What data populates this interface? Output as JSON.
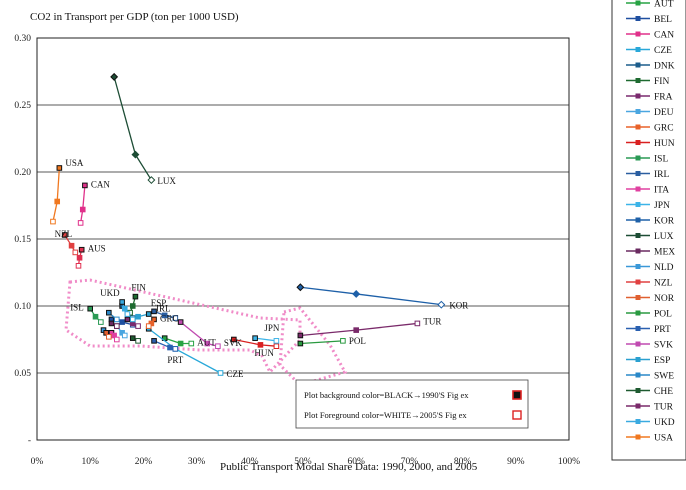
{
  "chart_data": {
    "type": "scatter",
    "title": "CO2 in Transport per GDP (ton per 1000 USD)",
    "xlabel": "Public Transport Modal Share    Data: 1990, 2000, and 2005",
    "ylabel": "",
    "xlim": [
      0,
      100
    ],
    "ylim": [
      0,
      0.3
    ],
    "x_ticks": [
      "0%",
      "10%",
      "20%",
      "30%",
      "40%",
      "50%",
      "60%",
      "70%",
      "80%",
      "90%",
      "100%"
    ],
    "y_ticks": [
      "0.30",
      "0.25",
      "0.20",
      "0.15",
      "0.10",
      "0.05",
      "-"
    ],
    "grid": "horizontal",
    "legend_position": "right",
    "notes": [
      {
        "text": "Plot background color=BLACK→1990'S Fig  ex",
        "marker": "filled"
      },
      {
        "text": "Plot Foreground color=WHITE→2005'S Fig  ex",
        "marker": "open"
      }
    ],
    "series": [
      {
        "name": "AUT",
        "label": "AUT",
        "color": "#27a343",
        "points": [
          [
            24,
            0.076
          ],
          [
            27,
            0.072
          ],
          [
            29,
            0.072
          ]
        ]
      },
      {
        "name": "BEL",
        "label": "",
        "color": "#1f4fa0",
        "points": [
          [
            14,
            0.09
          ],
          [
            16,
            0.088
          ],
          [
            18,
            0.086
          ]
        ]
      },
      {
        "name": "CAN",
        "label": "CAN",
        "color": "#e0308a",
        "points": [
          [
            9,
            0.19
          ],
          [
            8.6,
            0.172
          ],
          [
            8.2,
            0.162
          ]
        ]
      },
      {
        "name": "CZE",
        "label": "CZE",
        "color": "#29a8d9",
        "points": [
          [
            21,
            0.083
          ],
          [
            26,
            0.068
          ],
          [
            34.5,
            0.05
          ]
        ]
      },
      {
        "name": "DNK",
        "label": "",
        "color": "#1c5d8c",
        "points": [
          [
            16,
            0.1
          ],
          [
            17,
            0.095
          ],
          [
            18,
            0.091
          ]
        ]
      },
      {
        "name": "FIN",
        "label": "FIN",
        "color": "#1e6a30",
        "points": [
          [
            18.5,
            0.107
          ],
          [
            18,
            0.1
          ],
          [
            17.5,
            0.095
          ]
        ]
      },
      {
        "name": "FRA",
        "label": "",
        "color": "#7a2a6e",
        "points": [
          [
            17,
            0.09
          ],
          [
            18,
            0.087
          ],
          [
            19,
            0.085
          ]
        ]
      },
      {
        "name": "DEU",
        "label": "",
        "color": "#4aa6e0",
        "points": [
          [
            15,
            0.085
          ],
          [
            16,
            0.08
          ],
          [
            16.5,
            0.078
          ]
        ]
      },
      {
        "name": "GRC",
        "label": "GRC",
        "color": "#e8622a",
        "points": [
          [
            22,
            0.09
          ],
          [
            21.5,
            0.087
          ],
          [
            21,
            0.085
          ]
        ]
      },
      {
        "name": "HUN",
        "label": "HUN",
        "color": "#d92020",
        "points": [
          [
            37,
            0.075
          ],
          [
            42,
            0.071
          ],
          [
            45,
            0.07
          ]
        ]
      },
      {
        "name": "ISL",
        "label": "ISL",
        "color": "#2a9a55",
        "points": [
          [
            10,
            0.098
          ],
          [
            11,
            0.092
          ],
          [
            12,
            0.088
          ]
        ]
      },
      {
        "name": "IRL",
        "label": "IRL",
        "color": "#2a5ea0",
        "points": [
          [
            22,
            0.096
          ],
          [
            24,
            0.093
          ],
          [
            26,
            0.091
          ]
        ]
      },
      {
        "name": "ITA",
        "label": "",
        "color": "#e040a0",
        "points": [
          [
            14,
            0.08
          ],
          [
            14.5,
            0.078
          ],
          [
            15,
            0.075
          ]
        ]
      },
      {
        "name": "JPN",
        "label": "JPN",
        "color": "#3cb4e8",
        "points": [
          [
            41,
            0.076
          ],
          [
            45,
            0.074
          ]
        ]
      },
      {
        "name": "KOR",
        "label": "KOR",
        "color": "#1e60a8",
        "points": [
          [
            49.5,
            0.114
          ],
          [
            60,
            0.109
          ],
          [
            76,
            0.101
          ]
        ]
      },
      {
        "name": "LUX",
        "label": "LUX",
        "color": "#1d4d35",
        "points": [
          [
            14.5,
            0.271
          ],
          [
            18.5,
            0.213
          ],
          [
            21.5,
            0.194
          ]
        ]
      },
      {
        "name": "MEX",
        "label": "",
        "color": "#6a2a60",
        "points": [
          [
            14,
            0.087
          ],
          [
            15,
            0.085
          ]
        ]
      },
      {
        "name": "NLD",
        "label": "",
        "color": "#3a98d8",
        "points": [
          [
            12.5,
            0.082
          ],
          [
            13,
            0.08
          ]
        ]
      },
      {
        "name": "NZL",
        "label": "NZL",
        "color": "#e04040",
        "points": [
          [
            5.2,
            0.153
          ],
          [
            6.5,
            0.145
          ],
          [
            7.2,
            0.14
          ]
        ]
      },
      {
        "name": "NOR",
        "label": "",
        "color": "#e06030",
        "points": [
          [
            13,
            0.08
          ],
          [
            13.5,
            0.077
          ]
        ]
      },
      {
        "name": "POL",
        "label": "POL",
        "color": "#2a9a40",
        "points": [
          [
            49.5,
            0.072
          ],
          [
            57.5,
            0.074
          ]
        ]
      },
      {
        "name": "PRT",
        "label": "PRT",
        "color": "#2a60b0",
        "points": [
          [
            22,
            0.074
          ],
          [
            25,
            0.069
          ],
          [
            26,
            0.068
          ]
        ]
      },
      {
        "name": "SVK",
        "label": "SVK",
        "color": "#c04ab0",
        "points": [
          [
            27,
            0.088
          ],
          [
            32,
            0.072
          ],
          [
            34,
            0.07
          ]
        ]
      },
      {
        "name": "ESP",
        "label": "ESP",
        "color": "#2aa0d0",
        "points": [
          [
            21,
            0.094
          ],
          [
            19,
            0.092
          ],
          [
            18,
            0.09
          ]
        ]
      },
      {
        "name": "SWE",
        "label": "",
        "color": "#2a88c8",
        "points": [
          [
            13.5,
            0.095
          ],
          [
            15,
            0.09
          ]
        ]
      },
      {
        "name": "CHE",
        "label": "",
        "color": "#1e5a30",
        "points": [
          [
            18,
            0.076
          ],
          [
            19,
            0.074
          ]
        ]
      },
      {
        "name": "TUR",
        "label": "TUR",
        "color": "#7a2a6a",
        "points": [
          [
            49.5,
            0.078
          ],
          [
            60,
            0.082
          ],
          [
            71.5,
            0.087
          ]
        ]
      },
      {
        "name": "UKD",
        "label": "UKD",
        "color": "#3aaae0",
        "points": [
          [
            16,
            0.103
          ],
          [
            16.5,
            0.098
          ],
          [
            17,
            0.094
          ]
        ]
      },
      {
        "name": "USA",
        "label": "USA",
        "color": "#f07820",
        "points": [
          [
            4.2,
            0.203
          ],
          [
            3.8,
            0.178
          ],
          [
            3,
            0.163
          ]
        ]
      },
      {
        "name": "AUS",
        "label": "AUS",
        "color": "#e03050",
        "points": [
          [
            8.4,
            0.142
          ],
          [
            8,
            0.136
          ],
          [
            7.8,
            0.13
          ]
        ]
      }
    ],
    "legend_entries": [
      "AUT",
      "BEL",
      "CAN",
      "CZE",
      "DNK",
      "FIN",
      "FRA",
      "DEU",
      "GRC",
      "HUN",
      "ISL",
      "IRL",
      "ITA",
      "JPN",
      "KOR",
      "LUX",
      "MEX",
      "NLD",
      "NZL",
      "NOR",
      "POL",
      "PRT",
      "SVK",
      "ESP",
      "SWE",
      "CHE",
      "TUR",
      "UKD",
      "USA"
    ]
  }
}
